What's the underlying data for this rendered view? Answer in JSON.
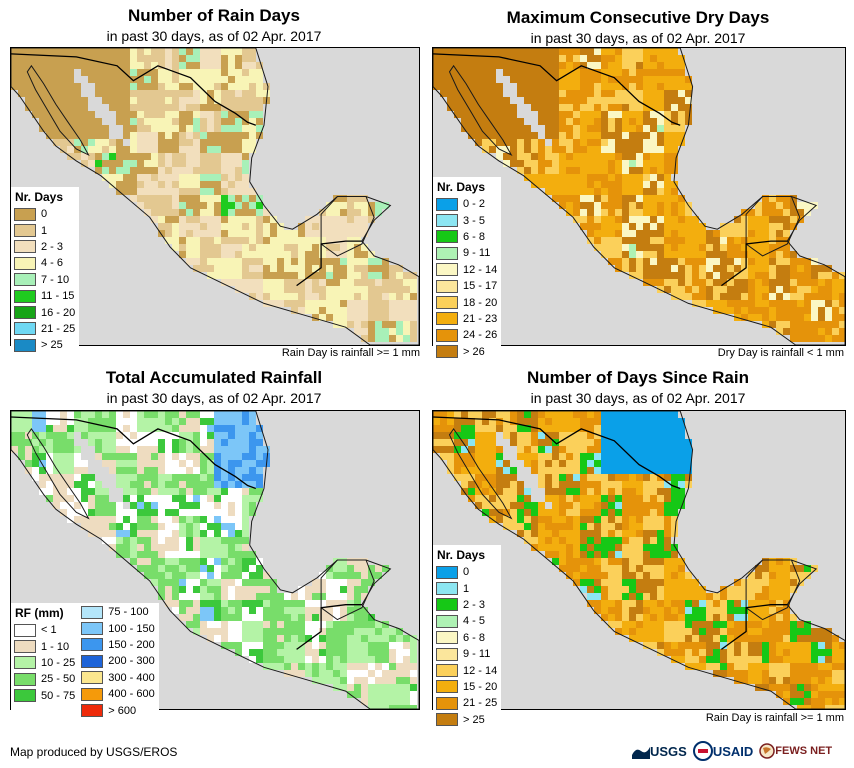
{
  "panels": [
    {
      "title": "Number of Rain Days",
      "subtitle": "in past 30 days, as of 02 Apr. 2017",
      "note": "Rain Day is rainfall >= 1 mm",
      "legend_title": "Nr. Days",
      "legend": [
        {
          "label": "0",
          "color": "#c8a050"
        },
        {
          "label": "1",
          "color": "#e3c891"
        },
        {
          "label": "2 - 3",
          "color": "#f2dfbd"
        },
        {
          "label": "4 - 6",
          "color": "#f8f4b6"
        },
        {
          "label": "7 - 10",
          "color": "#a8f0b8"
        },
        {
          "label": "11 - 15",
          "color": "#1fcb1f"
        },
        {
          "label": "16 - 20",
          "color": "#17a417"
        },
        {
          "label": "21 - 25",
          "color": "#6fd8f3"
        },
        {
          "label": "> 25",
          "color": "#1a8ac5"
        }
      ]
    },
    {
      "title": "Maximum Consecutive Dry Days",
      "subtitle": "in past 30 days, as of 02 Apr. 2017",
      "note": "Dry Day is rainfall < 1 mm",
      "legend_title": "Nr. Days",
      "legend": [
        {
          "label": "0 - 2",
          "color": "#0aa0e8"
        },
        {
          "label": "3 - 5",
          "color": "#8ce6f2"
        },
        {
          "label": "6 - 8",
          "color": "#16c816"
        },
        {
          "label": "9 - 11",
          "color": "#aef2b4"
        },
        {
          "label": "12 - 14",
          "color": "#fbf7c4"
        },
        {
          "label": "15 - 17",
          "color": "#fbe69c"
        },
        {
          "label": "18 - 20",
          "color": "#fbd05a"
        },
        {
          "label": "21 - 23",
          "color": "#f3ae0e"
        },
        {
          "label": "24 - 26",
          "color": "#e5930a"
        },
        {
          "label": "> 26",
          "color": "#c47d10"
        }
      ]
    },
    {
      "title": "Total Accumulated Rainfall",
      "subtitle": "in past 30 days, as of 02 Apr. 2017",
      "note": "",
      "legend_title": "RF (mm)",
      "legend": [
        {
          "label": "< 1",
          "color": "#ffffff"
        },
        {
          "label": "1 - 10",
          "color": "#eedcc0"
        },
        {
          "label": "10 - 25",
          "color": "#b4f3a6"
        },
        {
          "label": "25 - 50",
          "color": "#78dd6a"
        },
        {
          "label": "50 - 75",
          "color": "#3cc83c"
        },
        {
          "label": "75 - 100",
          "color": "#b4e6fa"
        },
        {
          "label": "100 - 150",
          "color": "#7cc6f8"
        },
        {
          "label": "150 - 200",
          "color": "#3c96ee"
        },
        {
          "label": "200 - 300",
          "color": "#1e64d8"
        },
        {
          "label": "300 - 400",
          "color": "#fbe78e"
        },
        {
          "label": "400 - 600",
          "color": "#f59a0a"
        },
        {
          "label": "> 600",
          "color": "#ee2a0a"
        }
      ]
    },
    {
      "title": "Number of Days Since Rain",
      "subtitle": "in past 30 days, as of 02 Apr. 2017",
      "note": "Rain Day is rainfall >= 1 mm",
      "legend_title": "Nr. Days",
      "legend": [
        {
          "label": "0",
          "color": "#0aa0e8"
        },
        {
          "label": "1",
          "color": "#8ce6f2"
        },
        {
          "label": "2 - 3",
          "color": "#16c816"
        },
        {
          "label": "4 - 5",
          "color": "#aef2b4"
        },
        {
          "label": "6 - 8",
          "color": "#fbf7c4"
        },
        {
          "label": "9 - 11",
          "color": "#fbe69c"
        },
        {
          "label": "12 - 14",
          "color": "#fbd05a"
        },
        {
          "label": "15 - 20",
          "color": "#f3ae0e"
        },
        {
          "label": "21 - 25",
          "color": "#e5930a"
        },
        {
          "label": "> 25",
          "color": "#c47d10"
        }
      ]
    }
  ],
  "credit": "Map produced by USGS/EROS",
  "logos": {
    "usgs": "USGS",
    "usaid": "USAID",
    "fews": "FEWS NET",
    "colors": {
      "usgs": "#00264c",
      "usaid": "#002f6c",
      "fews": "#7a1f1f"
    }
  }
}
